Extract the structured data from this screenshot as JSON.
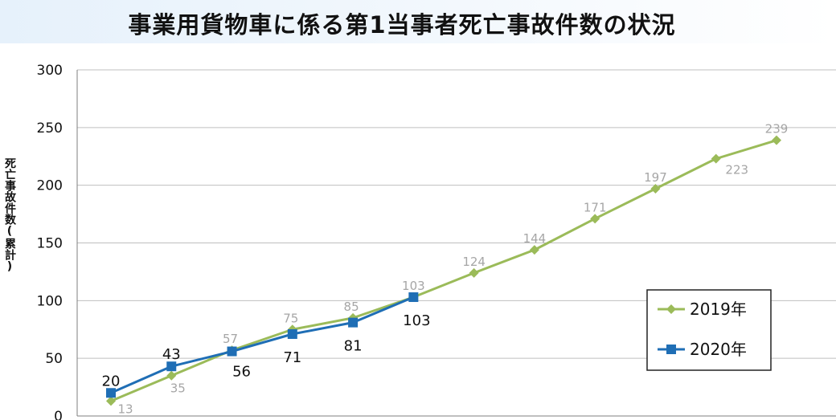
{
  "chart_data": {
    "type": "line",
    "title": "事業用貨物車に係る第1当事者死亡事故件数の状況",
    "ylabel": "死亡事故件数(累計)",
    "xlabel": "",
    "ylim": [
      0,
      300
    ],
    "yticks": [
      0,
      50,
      100,
      150,
      200,
      250,
      300
    ],
    "grid": true,
    "legend": "right",
    "series": [
      {
        "name": "2019年",
        "color": "#9bbb59",
        "marker": "diamond",
        "values": [
          13,
          35,
          57,
          75,
          85,
          103,
          124,
          144,
          171,
          197,
          223,
          239
        ]
      },
      {
        "name": "2020年",
        "color": "#1f6eb5",
        "marker": "square",
        "values": [
          20,
          43,
          56,
          71,
          81,
          103
        ]
      }
    ]
  }
}
